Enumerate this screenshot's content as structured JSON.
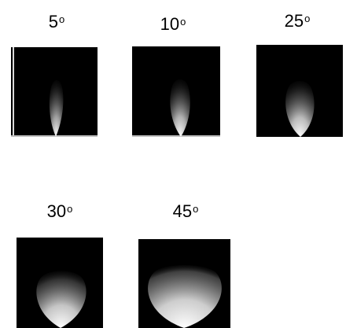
{
  "panels": [
    {
      "angle": "5",
      "degree": "o"
    },
    {
      "angle": "10",
      "degree": "o"
    },
    {
      "angle": "25",
      "degree": "o"
    },
    {
      "angle": "30",
      "degree": "o"
    },
    {
      "angle": "45",
      "degree": "o"
    }
  ],
  "colors": {
    "background": "#ffffff",
    "panel": "#000000",
    "beam": "#ffffff"
  }
}
